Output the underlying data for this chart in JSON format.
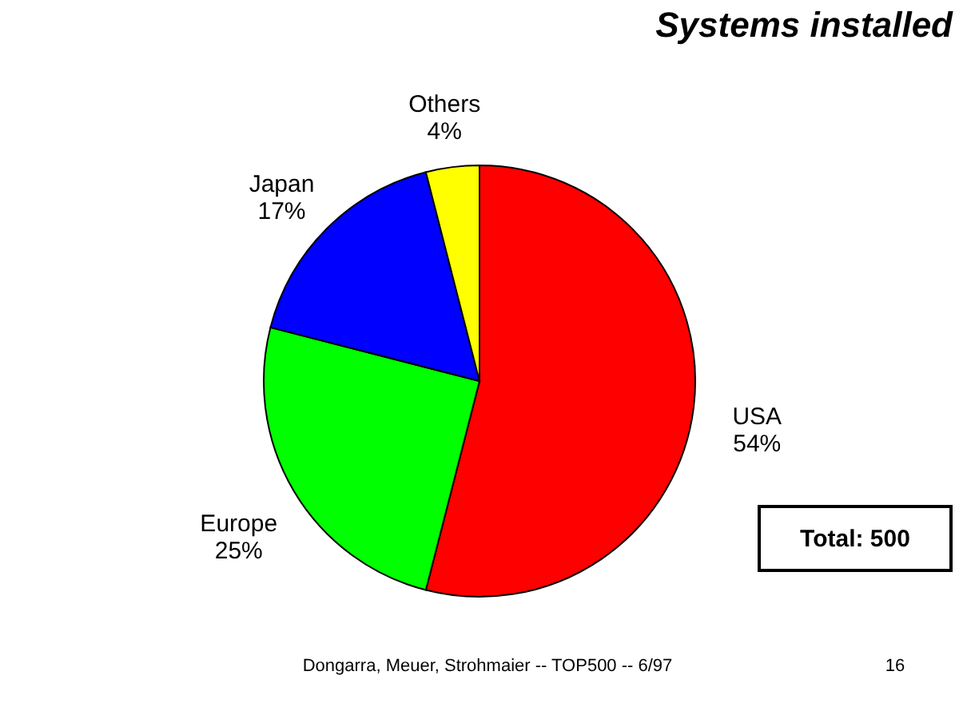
{
  "chart_data": {
    "type": "pie",
    "title": "Systems installed",
    "categories": [
      "USA",
      "Europe",
      "Japan",
      "Others"
    ],
    "values": [
      54,
      25,
      17,
      4
    ],
    "value_labels": [
      "54%",
      "25%",
      "17%",
      "4%"
    ],
    "colors": [
      "#ff0000",
      "#00ff00",
      "#0000ff",
      "#ffff00"
    ],
    "legend": false,
    "annotations": [
      "Total: 500",
      "Dongarra, Meuer, Strohmaier -- TOP500 -- 6/97",
      "16"
    ]
  }
}
